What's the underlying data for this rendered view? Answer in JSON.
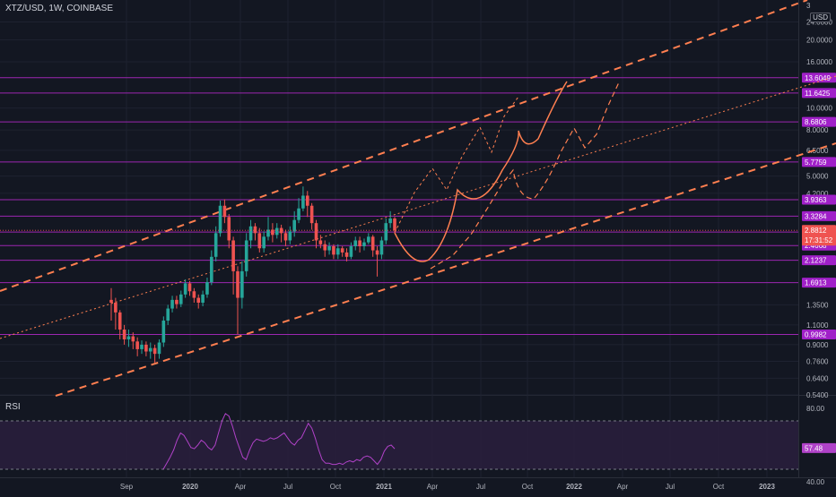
{
  "header": {
    "title": "XTZ/USD, 1W, COINBASE",
    "unit": "USD",
    "rsi_label": "RSI"
  },
  "colors": {
    "bg": "#131722",
    "up": "#26a69a",
    "down": "#ef5350",
    "level": "#9c27b0",
    "channel": "#ff7f50",
    "rsi": "#b042c8",
    "grid": "#1e2230",
    "axis_text": "#b2b5be"
  },
  "chart_data": [
    {
      "type": "candlestick",
      "title": "XTZ/USD, 1W, COINBASE",
      "y_scale": "log",
      "ylim": [
        0.54,
        30
      ],
      "x_ticks": [
        "Sep",
        "2020",
        "Apr",
        "Jul",
        "Oct",
        "2021",
        "Apr",
        "Jul",
        "Oct",
        "2022",
        "Apr",
        "Jul",
        "Oct",
        "2023"
      ],
      "y_ticks": [
        "24.0000",
        "20.0000",
        "16.0000",
        "10.0000",
        "8.0000",
        "6.5000",
        "5.0000",
        "4.2000",
        "1.3500",
        "1.1000",
        "0.9000",
        "0.7600",
        "0.6400",
        "0.5400"
      ],
      "y_top_partial": "3",
      "level_labels": [
        "13.6049",
        "11.6425",
        "8.6806",
        "5.7759",
        "3.9363",
        "3.3284",
        "2.8313",
        "2.4668",
        "2.1237",
        "1.6913",
        "0.9982"
      ],
      "current_price": "2.8812",
      "countdown": "17:31:52",
      "candles": [
        [
          1.42,
          1.38,
          1.6,
          1.15
        ],
        [
          1.38,
          1.25,
          1.45,
          1.05
        ],
        [
          1.25,
          1.05,
          1.28,
          0.95
        ],
        [
          1.05,
          0.95,
          1.1,
          0.9
        ],
        [
          0.95,
          0.98,
          1.05,
          0.88
        ],
        [
          0.98,
          0.93,
          1.02,
          0.86
        ],
        [
          0.93,
          0.86,
          0.97,
          0.8
        ],
        [
          0.86,
          0.9,
          0.94,
          0.82
        ],
        [
          0.9,
          0.84,
          0.93,
          0.8
        ],
        [
          0.84,
          0.87,
          0.92,
          0.78
        ],
        [
          0.87,
          0.82,
          0.9,
          0.75
        ],
        [
          0.82,
          0.92,
          0.95,
          0.78
        ],
        [
          0.92,
          1.15,
          1.2,
          0.88
        ],
        [
          1.15,
          1.3,
          1.35,
          1.1
        ],
        [
          1.3,
          1.42,
          1.48,
          1.25
        ],
        [
          1.42,
          1.36,
          1.48,
          1.3
        ],
        [
          1.36,
          1.5,
          1.56,
          1.32
        ],
        [
          1.5,
          1.68,
          1.75,
          1.45
        ],
        [
          1.68,
          1.55,
          1.72,
          1.48
        ],
        [
          1.55,
          1.45,
          1.6,
          1.38
        ],
        [
          1.45,
          1.38,
          1.5,
          1.3
        ],
        [
          1.38,
          1.5,
          1.56,
          1.33
        ],
        [
          1.5,
          1.7,
          1.78,
          1.45
        ],
        [
          1.7,
          2.2,
          2.35,
          1.65
        ],
        [
          2.2,
          2.8,
          3.0,
          2.1
        ],
        [
          2.8,
          3.7,
          3.9,
          2.7
        ],
        [
          3.7,
          3.3,
          3.95,
          3.1
        ],
        [
          3.3,
          2.6,
          3.4,
          2.4
        ],
        [
          2.6,
          1.9,
          2.7,
          1.5
        ],
        [
          1.9,
          1.45,
          2.0,
          1.0
        ],
        [
          1.45,
          1.9,
          2.1,
          1.3
        ],
        [
          1.9,
          2.6,
          2.8,
          1.8
        ],
        [
          2.6,
          3.0,
          3.2,
          2.4
        ],
        [
          3.0,
          2.8,
          3.1,
          2.6
        ],
        [
          2.8,
          2.4,
          2.95,
          2.3
        ],
        [
          2.4,
          2.7,
          2.85,
          2.3
        ],
        [
          2.7,
          2.9,
          3.3,
          2.6
        ],
        [
          2.9,
          2.75,
          3.1,
          2.55
        ],
        [
          2.75,
          2.95,
          3.1,
          2.65
        ],
        [
          2.95,
          2.8,
          3.05,
          2.55
        ],
        [
          2.8,
          2.6,
          2.9,
          2.45
        ],
        [
          2.6,
          2.85,
          3.0,
          2.5
        ],
        [
          2.85,
          3.2,
          3.5,
          2.7
        ],
        [
          3.2,
          3.6,
          4.0,
          3.1
        ],
        [
          3.6,
          4.1,
          4.5,
          3.5
        ],
        [
          4.1,
          3.7,
          4.3,
          3.3
        ],
        [
          3.7,
          3.1,
          3.8,
          2.9
        ],
        [
          3.1,
          2.6,
          3.2,
          2.4
        ],
        [
          2.6,
          2.5,
          2.75,
          2.4
        ],
        [
          2.5,
          2.35,
          2.6,
          2.2
        ],
        [
          2.35,
          2.45,
          2.55,
          2.25
        ],
        [
          2.45,
          2.25,
          2.5,
          2.15
        ],
        [
          2.25,
          2.4,
          2.5,
          2.15
        ],
        [
          2.4,
          2.3,
          2.45,
          2.2
        ],
        [
          2.3,
          2.2,
          2.4,
          2.1
        ],
        [
          2.2,
          2.45,
          2.55,
          2.15
        ],
        [
          2.45,
          2.6,
          2.7,
          2.35
        ],
        [
          2.6,
          2.45,
          2.7,
          2.3
        ],
        [
          2.45,
          2.55,
          2.65,
          2.35
        ],
        [
          2.55,
          2.7,
          2.8,
          2.5
        ],
        [
          2.7,
          2.35,
          2.75,
          2.2
        ],
        [
          2.35,
          2.25,
          2.45,
          1.8
        ],
        [
          2.25,
          2.6,
          2.7,
          2.15
        ],
        [
          2.6,
          3.1,
          3.25,
          2.5
        ],
        [
          3.1,
          3.25,
          3.5,
          2.95
        ],
        [
          3.25,
          2.88,
          3.3,
          2.8
        ]
      ],
      "rsi": {
        "label": "RSI",
        "current": "57.48",
        "y_ticks": [
          "80.00",
          "40.00"
        ],
        "values": [
          40,
          45,
          50,
          56,
          64,
          70,
          68,
          63,
          58,
          57,
          60,
          64,
          62,
          58,
          56,
          60,
          70,
          80,
          86,
          84,
          76,
          66,
          58,
          50,
          48,
          56,
          62,
          65,
          64,
          63,
          64,
          66,
          65,
          66,
          68,
          70,
          66,
          62,
          60,
          64,
          66,
          72,
          78,
          74,
          66,
          56,
          48,
          45,
          45,
          44,
          44,
          45,
          44,
          46,
          47,
          46,
          48,
          47,
          50,
          51,
          50,
          47,
          44,
          48,
          55,
          59,
          60,
          57
        ]
      }
    }
  ]
}
